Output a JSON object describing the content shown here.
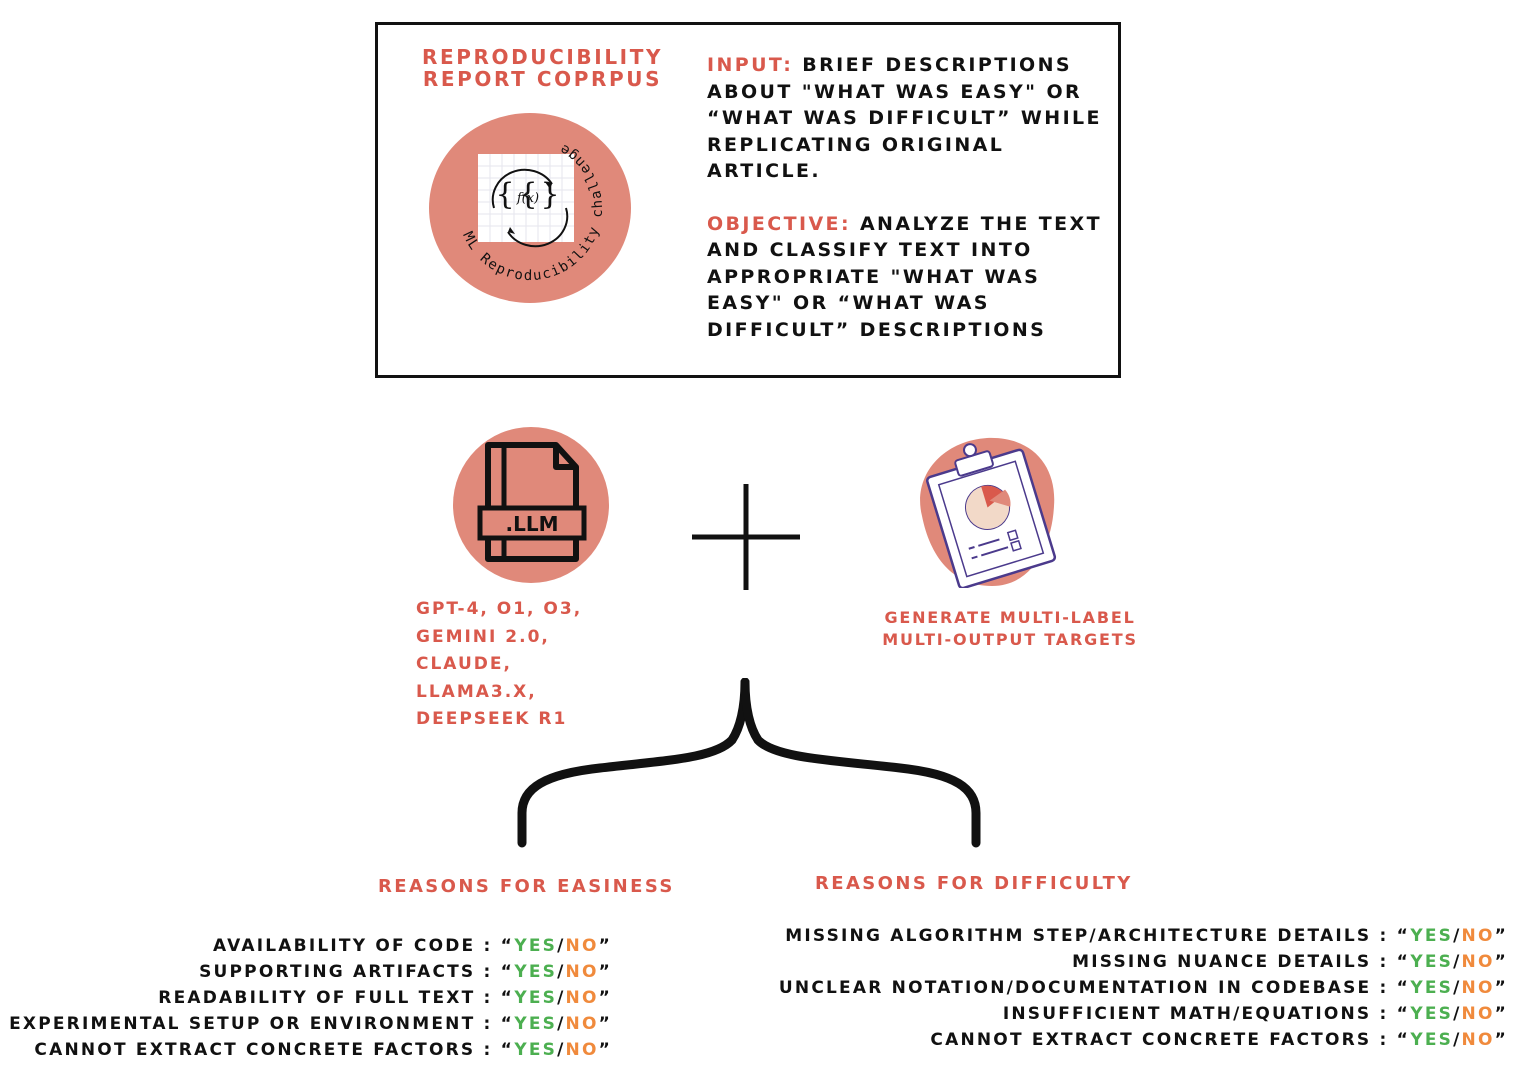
{
  "corpus": {
    "title_line1": "REPRODUCIBILITY",
    "title_line2": "REPORT COPRPUS",
    "badge_text": "ML Reproducibility challenge",
    "badge_formula": "f(x)"
  },
  "input": {
    "label": "INPUT:",
    "text": "BRIEF DESCRIPTIONS ABOUT \"WHAT WAS EASY\" OR “WHAT WAS DIFFICULT” WHILE REPLICATING ORIGINAL ARTICLE."
  },
  "objective": {
    "label": "OBJECTIVE:",
    "text": "ANALYZE THE TEXT AND CLASSIFY TEXT INTO APPROPRIATE \"WHAT WAS EASY\" OR “WHAT WAS DIFFICULT” DESCRIPTIONS"
  },
  "llm": {
    "file_label": ".LLM",
    "models": [
      "GPT-4, O1, O3,",
      "GEMINI 2.0,",
      "CLAUDE,",
      "LLAMA3.X,",
      "DEEPSEEK R1"
    ]
  },
  "targets": {
    "line1": "GENERATE MULTI-LABEL",
    "line2": "MULTI-OUTPUT TARGETS"
  },
  "easiness": {
    "heading": "REASONS FOR EASINESS",
    "items": [
      "AVAILABILITY OF CODE",
      "SUPPORTING ARTIFACTS",
      "READABILITY OF FULL TEXT",
      "EXPERIMENTAL SETUP OR ENVIRONMENT",
      "CANNOT EXTRACT CONCRETE FACTORS"
    ]
  },
  "difficulty": {
    "heading": "REASONS FOR DIFFICULTY",
    "items": [
      "MISSING ALGORITHM STEP/ARCHITECTURE DETAILS",
      "MISSING NUANCE DETAILS",
      "UNCLEAR NOTATION/DOCUMENTATION IN CODEBASE",
      "INSUFFICIENT MATH/EQUATIONS",
      "CANNOT EXTRACT CONCRETE FACTORS"
    ]
  },
  "answer": {
    "separator": " : ",
    "open_quote": "“",
    "yes": "YES",
    "slash": "/",
    "no": "NO",
    "close_quote": "”"
  },
  "colors": {
    "accent_red": "#d9594c",
    "badge_fill": "#e0897a",
    "yes_green": "#4caf50",
    "no_orange": "#f08a3c",
    "clipboard_purple": "#4b3a8c"
  }
}
